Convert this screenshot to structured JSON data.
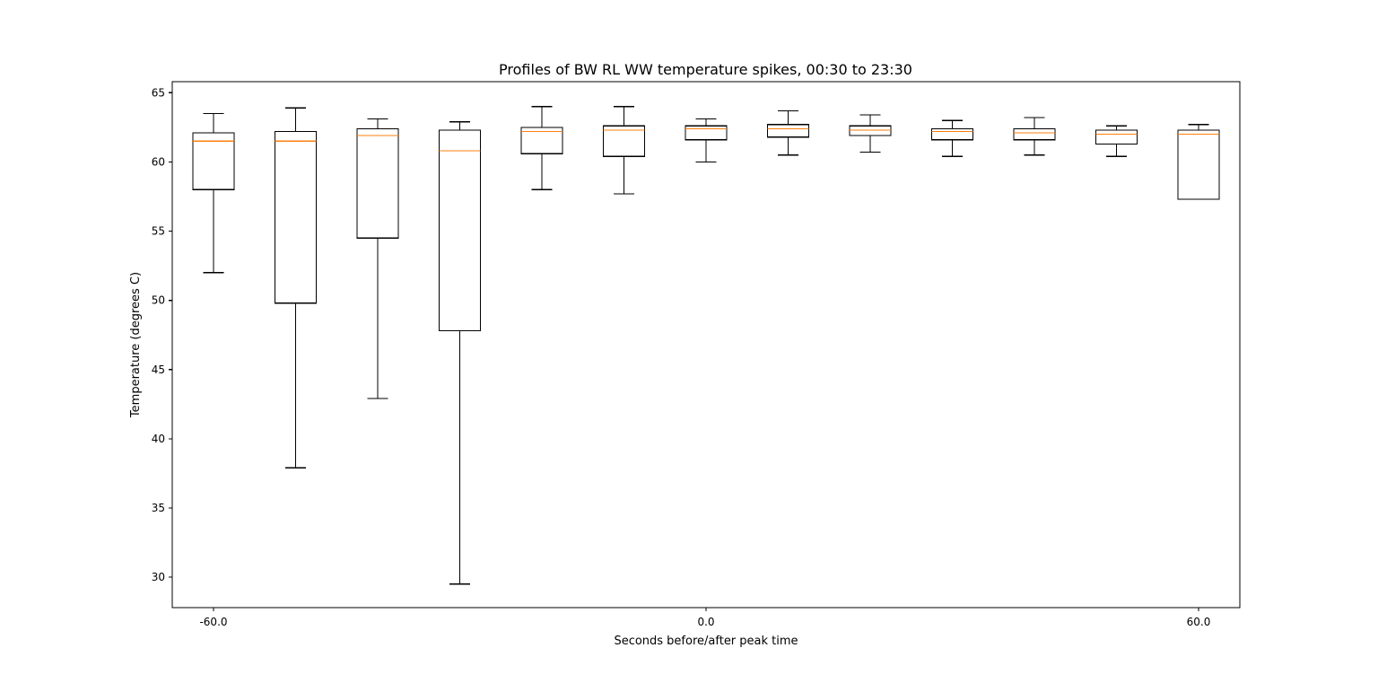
{
  "chart_data": {
    "type": "box",
    "title": "Profiles of BW RL WW temperature spikes, 00:30 to 23:30",
    "xlabel": "Seconds before/after peak time",
    "ylabel": "Temperature (degrees C)",
    "ylim": [
      27.8,
      65.8
    ],
    "yticks": [
      30,
      35,
      40,
      45,
      50,
      55,
      60,
      65
    ],
    "xticks": [
      {
        "box": 1,
        "label": "-60.0"
      },
      {
        "box": 7,
        "label": "0.0"
      },
      {
        "box": 13,
        "label": "60.0"
      }
    ],
    "grid": false,
    "colors": {
      "box": "#000000",
      "median": "#ff7f0e",
      "axes": "#000000"
    },
    "boxes": [
      {
        "position": 1,
        "whisker_low": 52.0,
        "q1": 58.0,
        "median": 61.5,
        "q3": 62.1,
        "whisker_high": 63.5
      },
      {
        "position": 2,
        "whisker_low": 37.9,
        "q1": 49.8,
        "median": 61.5,
        "q3": 62.2,
        "whisker_high": 63.9
      },
      {
        "position": 3,
        "whisker_low": 42.9,
        "q1": 54.5,
        "median": 61.9,
        "q3": 62.4,
        "whisker_high": 63.1
      },
      {
        "position": 4,
        "whisker_low": 29.5,
        "q1": 47.8,
        "median": 60.8,
        "q3": 62.3,
        "whisker_high": 62.9
      },
      {
        "position": 5,
        "whisker_low": 58.0,
        "q1": 60.6,
        "median": 62.2,
        "q3": 62.5,
        "whisker_high": 64.0
      },
      {
        "position": 6,
        "whisker_low": 57.7,
        "q1": 60.4,
        "median": 62.3,
        "q3": 62.6,
        "whisker_high": 64.0
      },
      {
        "position": 7,
        "whisker_low": 60.0,
        "q1": 61.6,
        "median": 62.4,
        "q3": 62.6,
        "whisker_high": 63.1
      },
      {
        "position": 8,
        "whisker_low": 60.5,
        "q1": 61.8,
        "median": 62.4,
        "q3": 62.7,
        "whisker_high": 63.7
      },
      {
        "position": 9,
        "whisker_low": 60.7,
        "q1": 61.9,
        "median": 62.3,
        "q3": 62.6,
        "whisker_high": 63.4
      },
      {
        "position": 10,
        "whisker_low": 60.4,
        "q1": 61.6,
        "median": 62.2,
        "q3": 62.4,
        "whisker_high": 63.0
      },
      {
        "position": 11,
        "whisker_low": 60.5,
        "q1": 61.6,
        "median": 62.1,
        "q3": 62.4,
        "whisker_high": 63.2
      },
      {
        "position": 12,
        "whisker_low": 60.4,
        "q1": 61.3,
        "median": 62.0,
        "q3": 62.3,
        "whisker_high": 62.6
      },
      {
        "position": 13,
        "whisker_low": 57.3,
        "q1": 57.3,
        "median": 62.0,
        "q3": 62.3,
        "whisker_high": 62.7
      }
    ]
  }
}
